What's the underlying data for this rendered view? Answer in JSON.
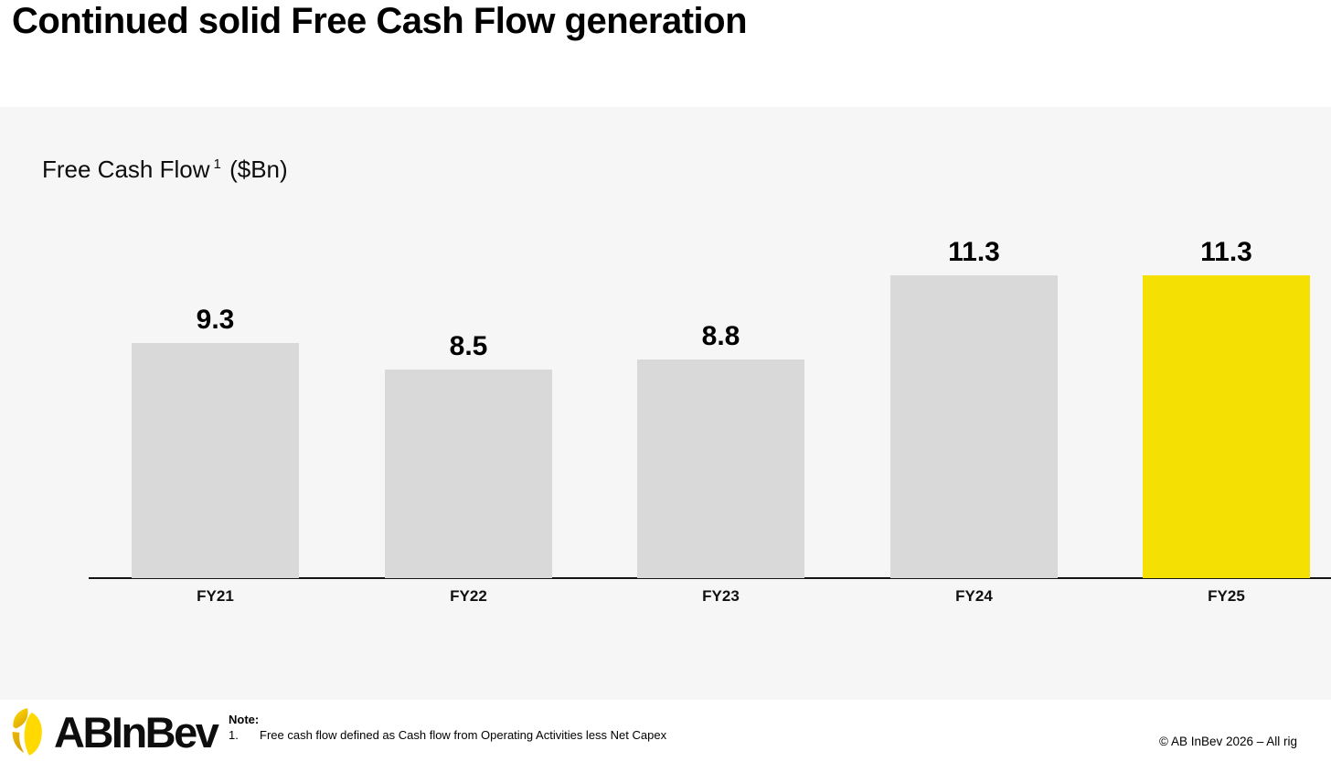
{
  "slide": {
    "title": "Continued solid Free Cash Flow generation"
  },
  "chart_data": {
    "type": "bar",
    "title": "Free Cash Flow",
    "title_footnote_ref": "1",
    "title_unit": "($Bn)",
    "categories": [
      "FY21",
      "FY22",
      "FY23",
      "FY24",
      "FY25"
    ],
    "values": [
      9.3,
      8.5,
      8.8,
      11.3,
      11.3
    ],
    "value_labels": [
      "9.3",
      "8.5",
      "8.8",
      "11.3",
      "11.3"
    ],
    "ylim": [
      2.35,
      13.5
    ],
    "grid": false,
    "legend": false,
    "highlight_index": 4,
    "colors": {
      "bar_default": "#D9D9D9",
      "bar_highlight": "#F5E003",
      "axis": "#141414",
      "panel_background": "#F6F6F6"
    }
  },
  "footer": {
    "logo_text": "ABInBev",
    "logo_icon": "abinbev-leaf-roundel",
    "logo_colors": {
      "bright_yellow": "#FFD900",
      "gold": "#DFA604"
    },
    "note_label": "Note:",
    "note_number": "1.",
    "note_text": "Free cash flow defined as Cash flow from Operating Activities less Net Capex",
    "copyright": "© AB InBev 2026 – All rig"
  }
}
